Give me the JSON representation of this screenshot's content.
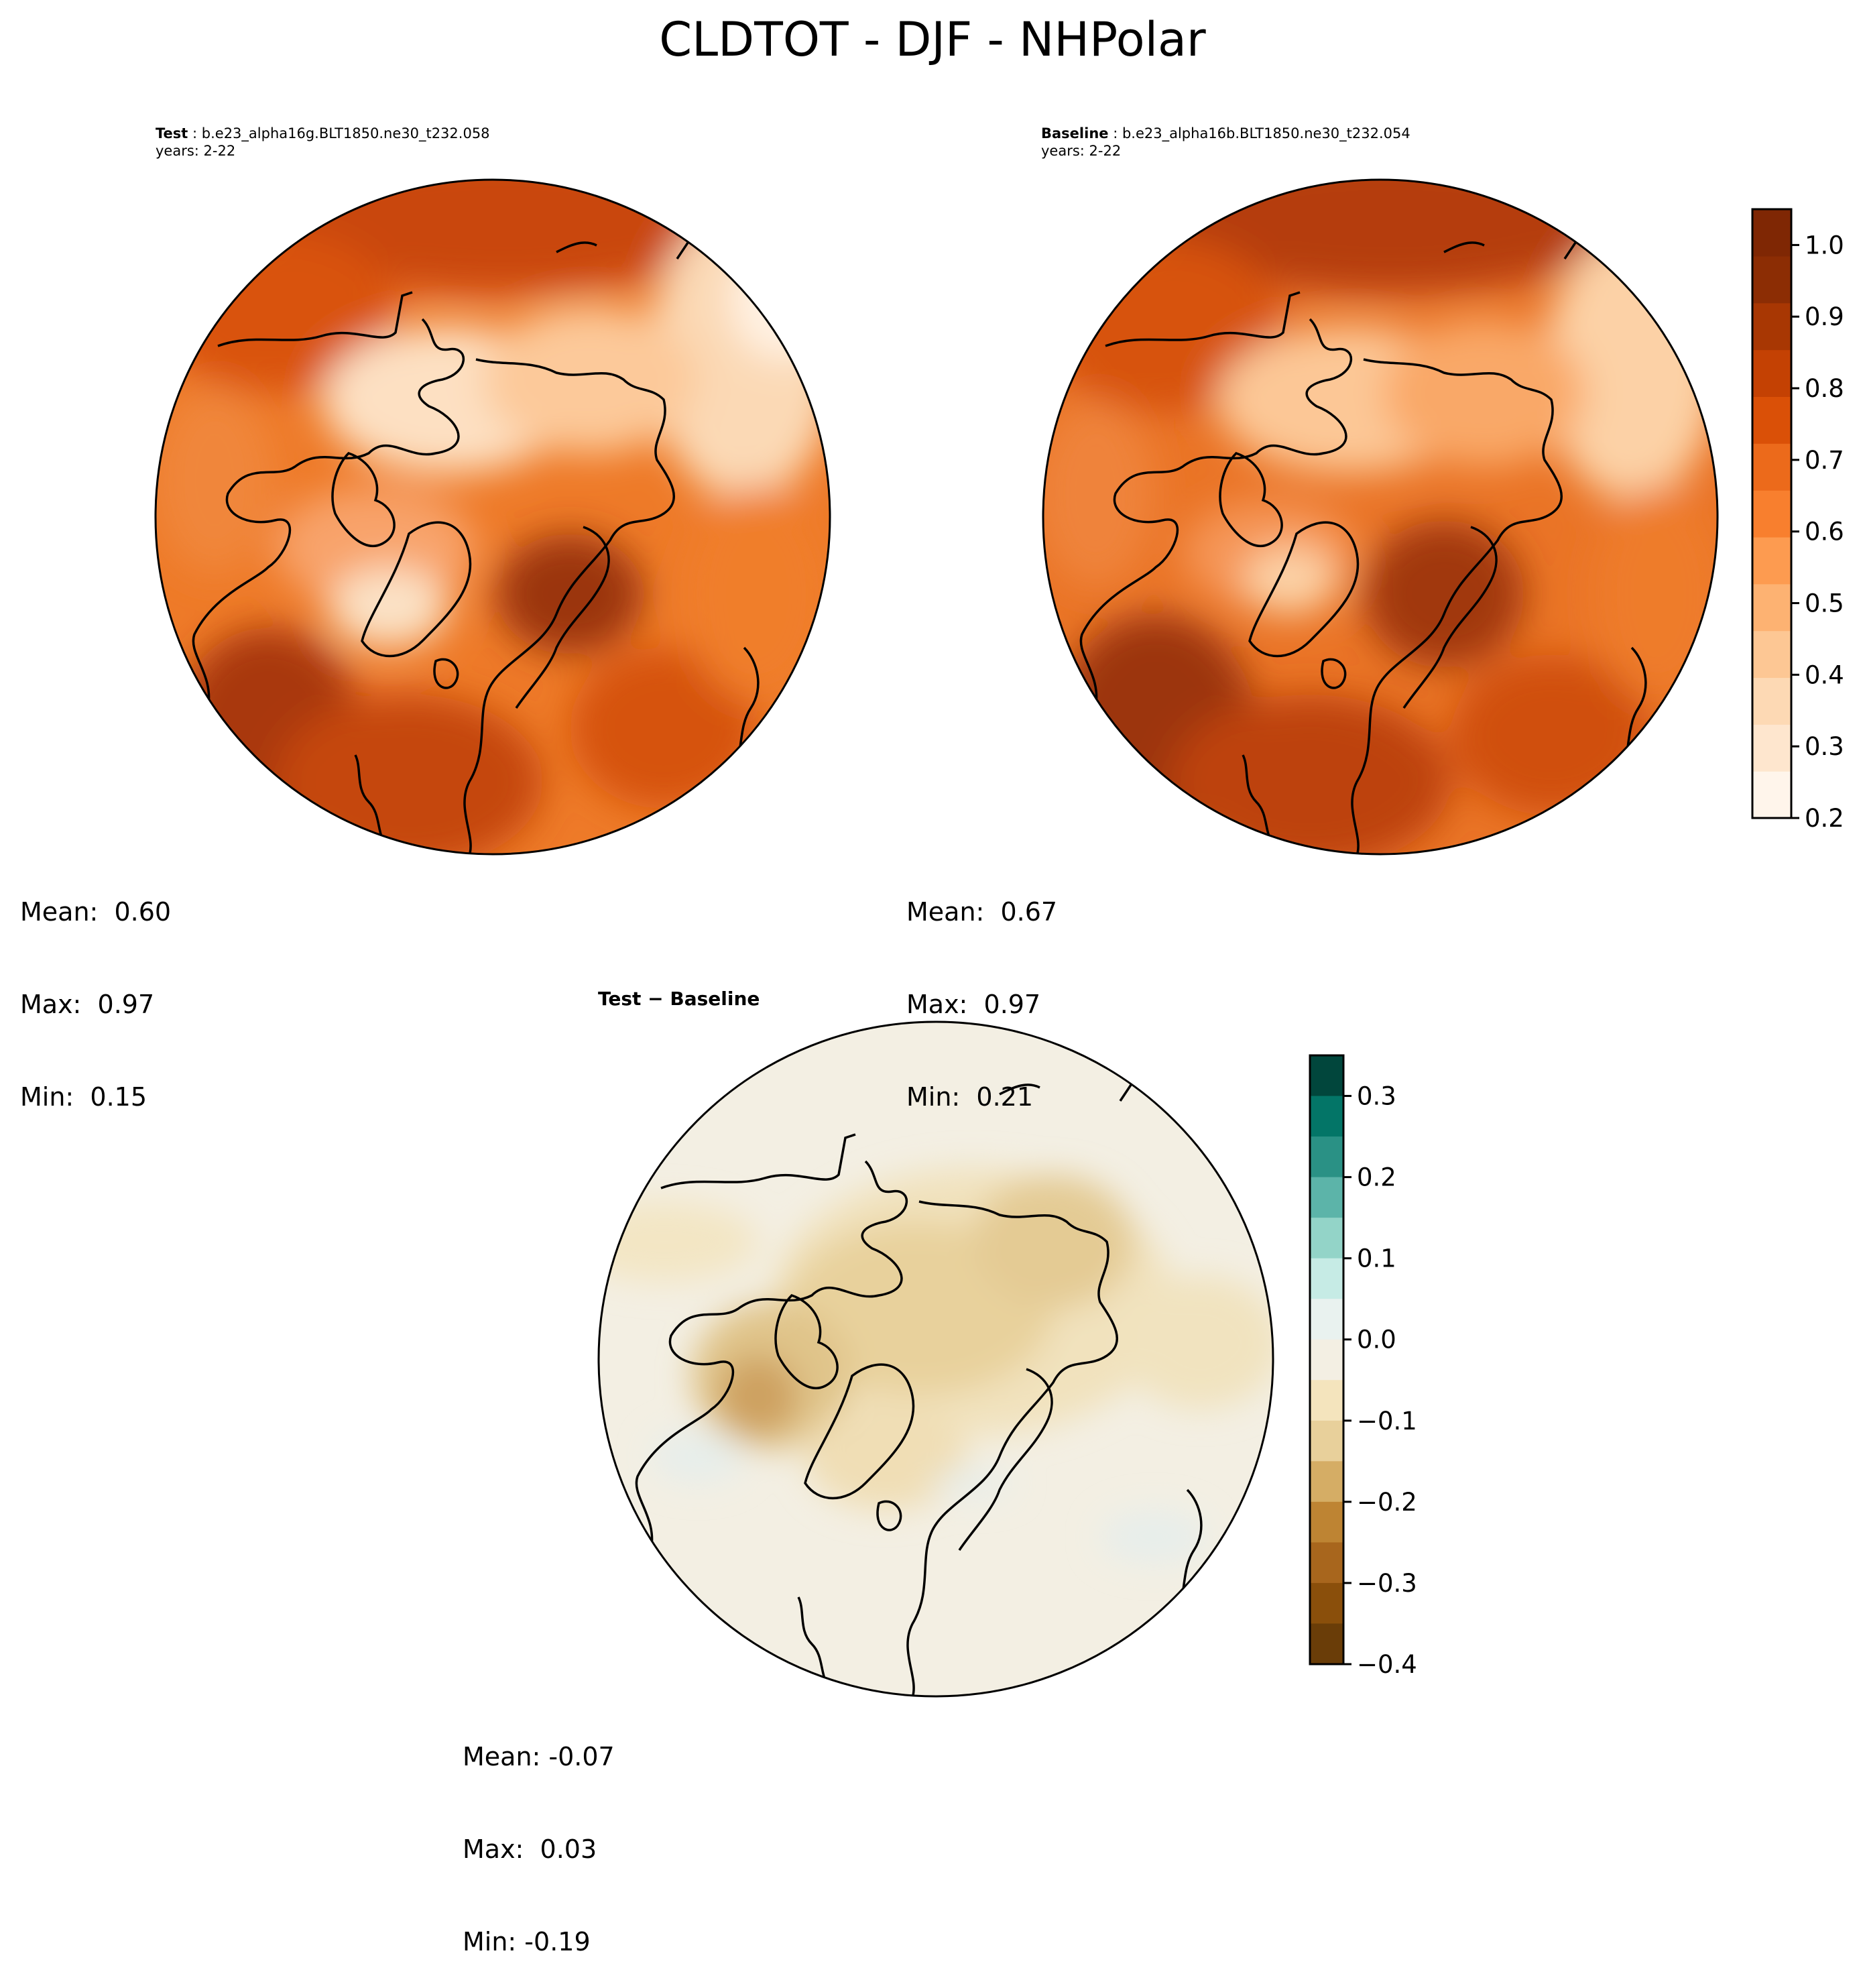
{
  "title": "CLDTOT - DJF - NHPolar",
  "panels": {
    "test": {
      "label": "Test",
      "case": "b.e23_alpha16g.BLT1850.ne30_t232.058",
      "years": "years: 2-22",
      "mean": "Mean:  0.60",
      "max": "Max:  0.97",
      "min": "Min:  0.15"
    },
    "baseline": {
      "label": "Baseline",
      "case": "b.e23_alpha16b.BLT1850.ne30_t232.054",
      "years": "years: 2-22",
      "mean": "Mean:  0.67",
      "max": "Max:  0.97",
      "min": "Min:  0.21"
    },
    "diff": {
      "label": "Test − Baseline",
      "mean": "Mean: -0.07",
      "max": "Max:  0.03",
      "min": "Min: -0.19"
    }
  },
  "colorbars": {
    "abs": {
      "ticks": [
        "0.2",
        "0.3",
        "0.4",
        "0.5",
        "0.6",
        "0.7",
        "0.8",
        "0.9",
        "1.0"
      ],
      "colors": [
        "#fff5eb",
        "#fee6ce",
        "#fdd9b4",
        "#fdc794",
        "#fdb272",
        "#fd9b50",
        "#f87f2e",
        "#ec6a1b",
        "#da5007",
        "#c44103",
        "#a83703",
        "#8c2d04",
        "#7f2704"
      ]
    },
    "diff": {
      "ticks": [
        "0.3",
        "0.2",
        "0.1",
        "0.0",
        "−0.1",
        "−0.2",
        "−0.3",
        "−0.4"
      ],
      "colors": [
        "#01463c",
        "#037567",
        "#2a9185",
        "#5cb4a9",
        "#93d4c8",
        "#c6ebe5",
        "#e9f2ef",
        "#f3efe3",
        "#f4e4bd",
        "#e8d09b",
        "#d5ad65",
        "#be8433",
        "#a8661d",
        "#8a4f0b",
        "#6a3d08"
      ]
    }
  }
}
